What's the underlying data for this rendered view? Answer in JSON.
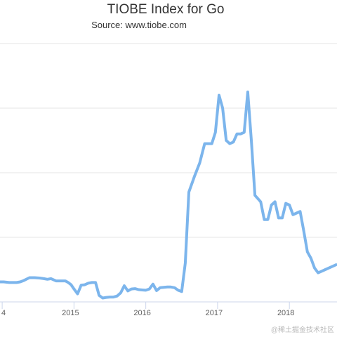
{
  "chart_data": {
    "type": "line",
    "title": "TIOBE Index for Go",
    "subtitle": "Source: www.tiobe.com",
    "xlabel": "",
    "ylabel": "",
    "x_tick_labels": [
      "4",
      "2015",
      "2016",
      "2017",
      "2018"
    ],
    "grid": true,
    "legend": "none",
    "line_color": "#7cb5ec",
    "series": [
      {
        "x": [
          2013.95,
          2014.02,
          2014.1,
          2014.15,
          2014.2,
          2014.25,
          2014.3,
          2014.38,
          2014.45,
          2014.52,
          2014.58,
          2014.63,
          2014.68,
          2014.75,
          2014.82,
          2014.88,
          2014.92,
          2014.96,
          2015.0,
          2015.05,
          2015.1,
          2015.15,
          2015.2,
          2015.25,
          2015.3,
          2015.35,
          2015.4,
          2015.45,
          2015.5,
          2015.55,
          2015.6,
          2015.65,
          2015.7,
          2015.75,
          2015.8,
          2015.85,
          2015.9,
          2015.95,
          2016.0,
          2016.05,
          2016.1,
          2016.15,
          2016.2,
          2016.25,
          2016.3,
          2016.35,
          2016.4,
          2016.45,
          2016.5,
          2016.55,
          2016.6,
          2016.68,
          2016.75,
          2016.82,
          2016.88,
          2016.92,
          2016.97,
          2017.02,
          2017.07,
          2017.12,
          2017.17,
          2017.22,
          2017.27,
          2017.32,
          2017.37,
          2017.42,
          2017.47,
          2017.52,
          2017.56,
          2017.6,
          2017.65,
          2017.7,
          2017.75,
          2017.8,
          2017.85,
          2017.9,
          2017.95,
          2018.0,
          2018.05,
          2018.1,
          2018.15,
          2018.2,
          2018.25,
          2018.3,
          2018.35,
          2018.4,
          2018.45,
          2018.5,
          2018.55,
          2018.6,
          2018.65
        ],
        "y": [
          0.62,
          0.62,
          0.6,
          0.6,
          0.6,
          0.62,
          0.66,
          0.75,
          0.75,
          0.74,
          0.72,
          0.7,
          0.72,
          0.65,
          0.65,
          0.65,
          0.6,
          0.53,
          0.4,
          0.25,
          0.52,
          0.53,
          0.58,
          0.6,
          0.6,
          0.2,
          0.12,
          0.14,
          0.15,
          0.15,
          0.18,
          0.28,
          0.5,
          0.34,
          0.4,
          0.41,
          0.38,
          0.37,
          0.36,
          0.4,
          0.55,
          0.35,
          0.44,
          0.45,
          0.46,
          0.46,
          0.44,
          0.36,
          0.32,
          1.2,
          3.4,
          3.9,
          4.3,
          4.9,
          4.9,
          4.9,
          5.25,
          6.4,
          6.0,
          5.0,
          4.9,
          4.95,
          5.2,
          5.2,
          5.25,
          6.5,
          5.0,
          3.3,
          3.2,
          3.1,
          2.55,
          2.55,
          3.0,
          3.1,
          2.6,
          2.6,
          3.05,
          3.0,
          2.7,
          2.75,
          2.8,
          2.2,
          1.55,
          1.35,
          1.05,
          0.9,
          0.95,
          1.0,
          1.05,
          1.1,
          1.15
        ]
      }
    ]
  },
  "watermark": "@稀土掘金技术社区"
}
